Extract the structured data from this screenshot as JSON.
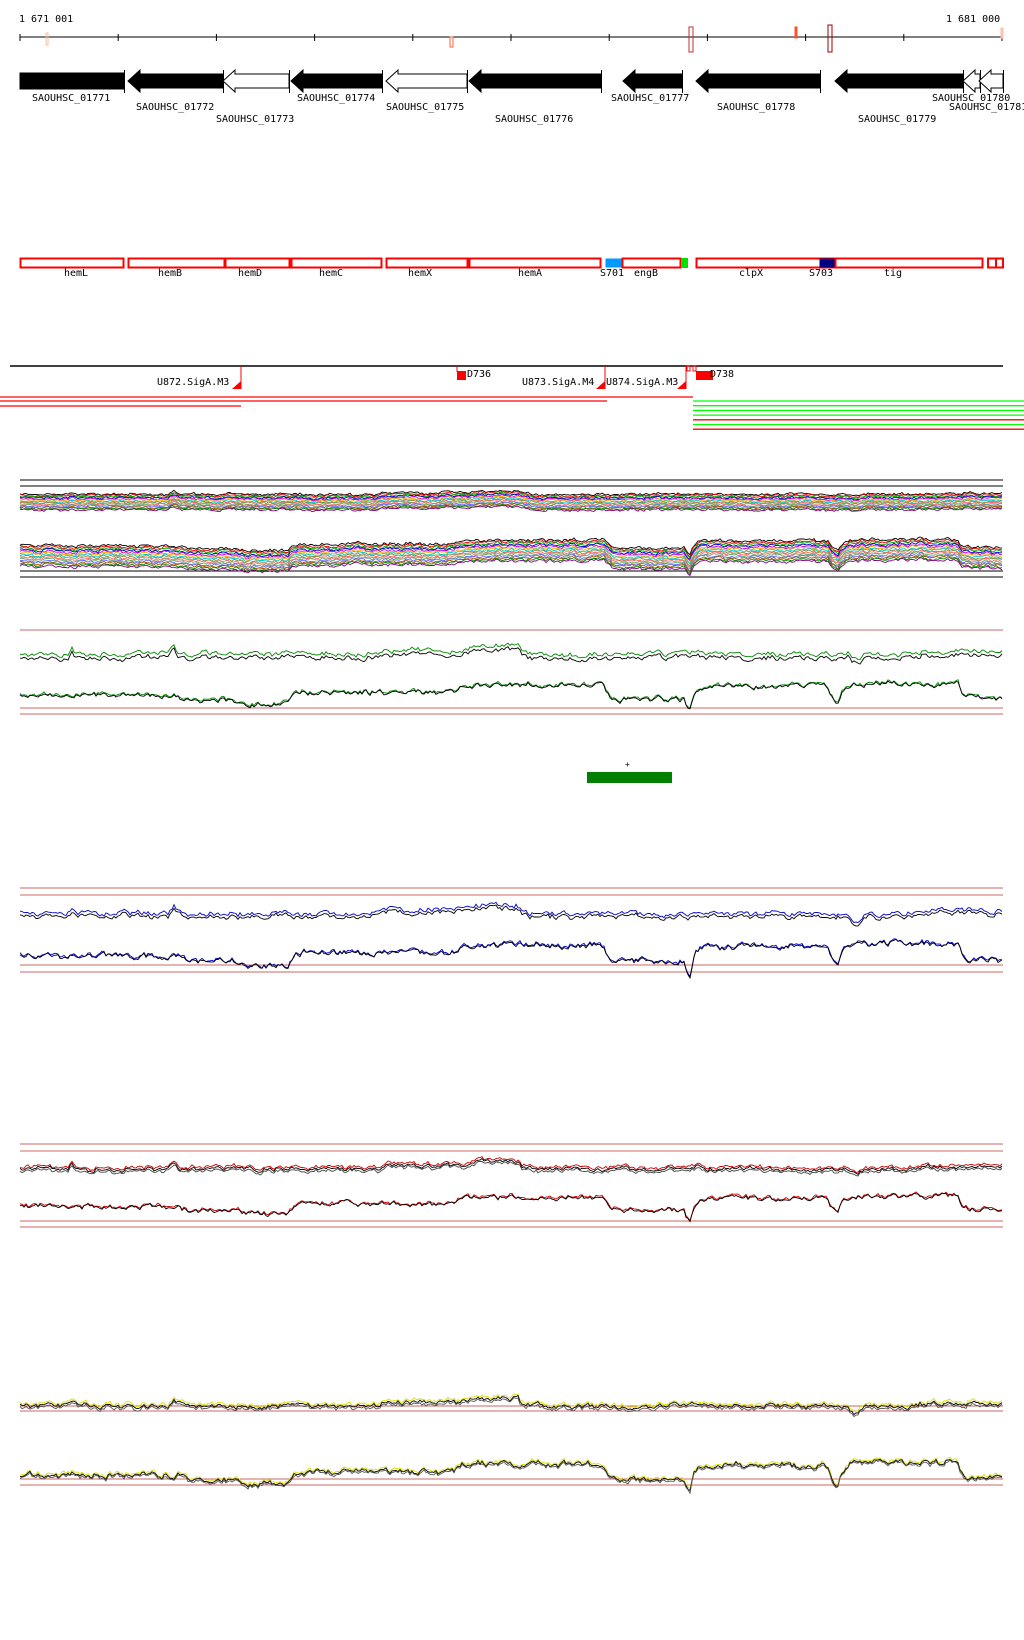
{
  "ruler": {
    "start_label": "1 671 001",
    "end_label": "1 681 000"
  },
  "genes": [
    {
      "name": "SAOUHSC_01771",
      "fill": "black"
    },
    {
      "name": "SAOUHSC_01772",
      "fill": "black"
    },
    {
      "name": "SAOUHSC_01773",
      "fill": "white"
    },
    {
      "name": "SAOUHSC_01774",
      "fill": "black"
    },
    {
      "name": "SAOUHSC_01775",
      "fill": "white"
    },
    {
      "name": "SAOUHSC_01776",
      "fill": "black"
    },
    {
      "name": "SAOUHSC_01777",
      "fill": "black"
    },
    {
      "name": "SAOUHSC_01778",
      "fill": "black"
    },
    {
      "name": "SAOUHSC_01779",
      "fill": "black"
    },
    {
      "name": "SAOUHSC_01780",
      "fill": "white"
    },
    {
      "name": "SAOUHSC_01781",
      "fill": "white"
    }
  ],
  "annotations": [
    {
      "name": "hemL"
    },
    {
      "name": "hemB"
    },
    {
      "name": "hemD"
    },
    {
      "name": "hemC"
    },
    {
      "name": "hemX"
    },
    {
      "name": "hemA"
    },
    {
      "name": "S701",
      "color": "#0099ff"
    },
    {
      "name": "engB"
    },
    {
      "name": "clpX"
    },
    {
      "name": "S703",
      "color": "#000080"
    },
    {
      "name": "tig"
    }
  ],
  "promoters": [
    {
      "label": "U872.SigA.M3"
    },
    {
      "label": "D736"
    },
    {
      "label": "U873.SigA.M4"
    },
    {
      "label": "U874.SigA.M3"
    },
    {
      "label": "D738"
    }
  ],
  "green_feature": {
    "label": "+",
    "color": "#008000"
  },
  "colors": {
    "feature_outline": "#ff0000",
    "track2": "#008000",
    "track3": "#0000cc",
    "track4": "#cc0000",
    "track5": "#e0e000",
    "guide": "#993333"
  }
}
